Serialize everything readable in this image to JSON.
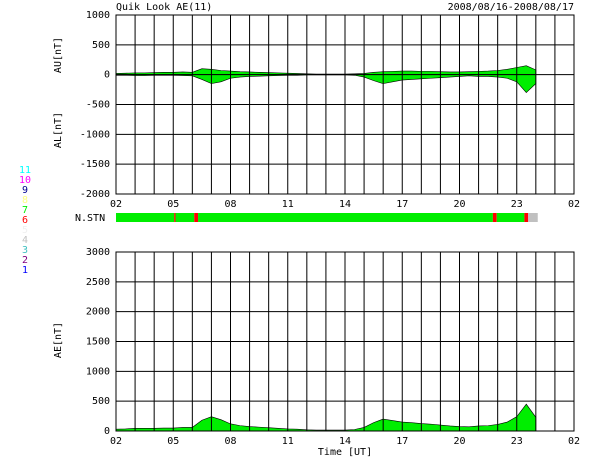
{
  "header": {
    "title": "Quik Look AE(11)",
    "date_range": "2008/08/16-2008/08/17"
  },
  "chart_data": [
    {
      "type": "area",
      "ylabels": [
        "AU[nT]",
        "AL[nT]"
      ],
      "xlim": [
        2,
        26
      ],
      "xticks": [
        {
          "value": 2,
          "label": "02"
        },
        {
          "value": 5,
          "label": "05"
        },
        {
          "value": 8,
          "label": "08"
        },
        11,
        14,
        17,
        20,
        23,
        {
          "value": 26,
          "label": "02"
        }
      ],
      "xgrid": [
        2,
        3,
        4,
        5,
        6,
        7,
        8,
        9,
        10,
        11,
        12,
        13,
        14,
        15,
        16,
        17,
        18,
        19,
        20,
        21,
        22,
        23,
        24,
        25,
        26
      ],
      "ylim": [
        -2000,
        1000
      ],
      "yticks": [
        1000,
        500,
        0,
        -500,
        -1000,
        -1500,
        -2000
      ],
      "grid": true,
      "x": [
        2,
        2.5,
        3,
        3.5,
        4,
        4.5,
        5,
        5.5,
        6,
        6.5,
        7,
        7.5,
        8,
        8.5,
        9,
        9.5,
        10,
        10.5,
        11,
        11.5,
        12,
        12.5,
        13,
        13.5,
        14,
        14.5,
        15,
        15.5,
        16,
        16.5,
        17,
        17.5,
        18,
        18.5,
        19,
        19.5,
        20,
        20.5,
        21,
        21.5,
        22,
        22.5,
        23,
        23.5,
        24
      ],
      "series": [
        {
          "name": "AU",
          "color": "#00ee00",
          "values": [
            20,
            25,
            30,
            30,
            35,
            40,
            40,
            45,
            40,
            100,
            90,
            70,
            60,
            50,
            45,
            40,
            35,
            30,
            25,
            20,
            15,
            10,
            10,
            10,
            10,
            15,
            20,
            40,
            50,
            55,
            60,
            60,
            55,
            55,
            50,
            45,
            45,
            50,
            55,
            60,
            70,
            90,
            120,
            150,
            80
          ]
        },
        {
          "name": "AL",
          "color": "#00ee00",
          "values": [
            -10,
            -10,
            -15,
            -15,
            -10,
            -10,
            -10,
            -15,
            -20,
            -80,
            -150,
            -120,
            -60,
            -40,
            -30,
            -25,
            -20,
            -15,
            -10,
            -10,
            -5,
            -5,
            -5,
            -5,
            -5,
            -10,
            -40,
            -100,
            -150,
            -120,
            -90,
            -80,
            -70,
            -60,
            -50,
            -40,
            -30,
            -20,
            -30,
            -30,
            -40,
            -60,
            -120,
            -300,
            -150
          ]
        }
      ]
    },
    {
      "type": "area",
      "ylabels": [
        "AE[nT]"
      ],
      "xlabel": "Time [UT]",
      "xlim": [
        2,
        26
      ],
      "xticks": [
        {
          "value": 2,
          "label": "02"
        },
        {
          "value": 5,
          "label": "05"
        },
        {
          "value": 8,
          "label": "08"
        },
        11,
        14,
        17,
        20,
        23,
        {
          "value": 26,
          "label": "02"
        }
      ],
      "xgrid": [
        2,
        3,
        4,
        5,
        6,
        7,
        8,
        9,
        10,
        11,
        12,
        13,
        14,
        15,
        16,
        17,
        18,
        19,
        20,
        21,
        22,
        23,
        24,
        25,
        26
      ],
      "ylim": [
        0,
        3000
      ],
      "yticks": [
        3000,
        2500,
        2000,
        1500,
        1000,
        500,
        0
      ],
      "grid": true,
      "x": [
        2,
        2.5,
        3,
        3.5,
        4,
        4.5,
        5,
        5.5,
        6,
        6.5,
        7,
        7.5,
        8,
        8.5,
        9,
        9.5,
        10,
        10.5,
        11,
        11.5,
        12,
        12.5,
        13,
        13.5,
        14,
        14.5,
        15,
        15.5,
        16,
        16.5,
        17,
        17.5,
        18,
        18.5,
        19,
        19.5,
        20,
        20.5,
        21,
        21.5,
        22,
        22.5,
        23,
        23.5,
        24
      ],
      "series": [
        {
          "name": "AE",
          "color": "#00ee00",
          "values": [
            30,
            35,
            45,
            45,
            45,
            50,
            50,
            60,
            60,
            180,
            240,
            190,
            120,
            90,
            75,
            65,
            55,
            45,
            35,
            30,
            20,
            15,
            15,
            15,
            15,
            25,
            60,
            140,
            200,
            175,
            150,
            140,
            125,
            115,
            100,
            85,
            75,
            70,
            85,
            90,
            110,
            150,
            240,
            450,
            230
          ]
        }
      ]
    }
  ],
  "station_bar": {
    "label": "N.STN",
    "legend": [
      {
        "count": 11,
        "color": "#00ffff"
      },
      {
        "count": 10,
        "color": "#ff00ff"
      },
      {
        "count": 9,
        "color": "#000090"
      },
      {
        "count": 8,
        "color": "#ffff80"
      },
      {
        "count": 7,
        "color": "#00ee00"
      },
      {
        "count": 6,
        "color": "#ff0000"
      },
      {
        "count": 5,
        "color": "#f0f0f0"
      },
      {
        "count": 4,
        "color": "#c0c0c0"
      },
      {
        "count": 3,
        "color": "#40c0c0"
      },
      {
        "count": 2,
        "color": "#800080"
      },
      {
        "count": 1,
        "color": "#0000ff"
      }
    ],
    "segments": [
      {
        "start": 2,
        "end": 5.05,
        "count": 7
      },
      {
        "start": 5.05,
        "end": 5.12,
        "count": 6
      },
      {
        "start": 5.12,
        "end": 6.1,
        "count": 7
      },
      {
        "start": 6.1,
        "end": 6.3,
        "count": 6
      },
      {
        "start": 6.3,
        "end": 21.75,
        "count": 7
      },
      {
        "start": 21.75,
        "end": 21.95,
        "count": 6
      },
      {
        "start": 21.95,
        "end": 23.4,
        "count": 7
      },
      {
        "start": 23.4,
        "end": 23.6,
        "count": 6
      },
      {
        "start": 23.6,
        "end": 24.1,
        "count": 4
      }
    ]
  }
}
